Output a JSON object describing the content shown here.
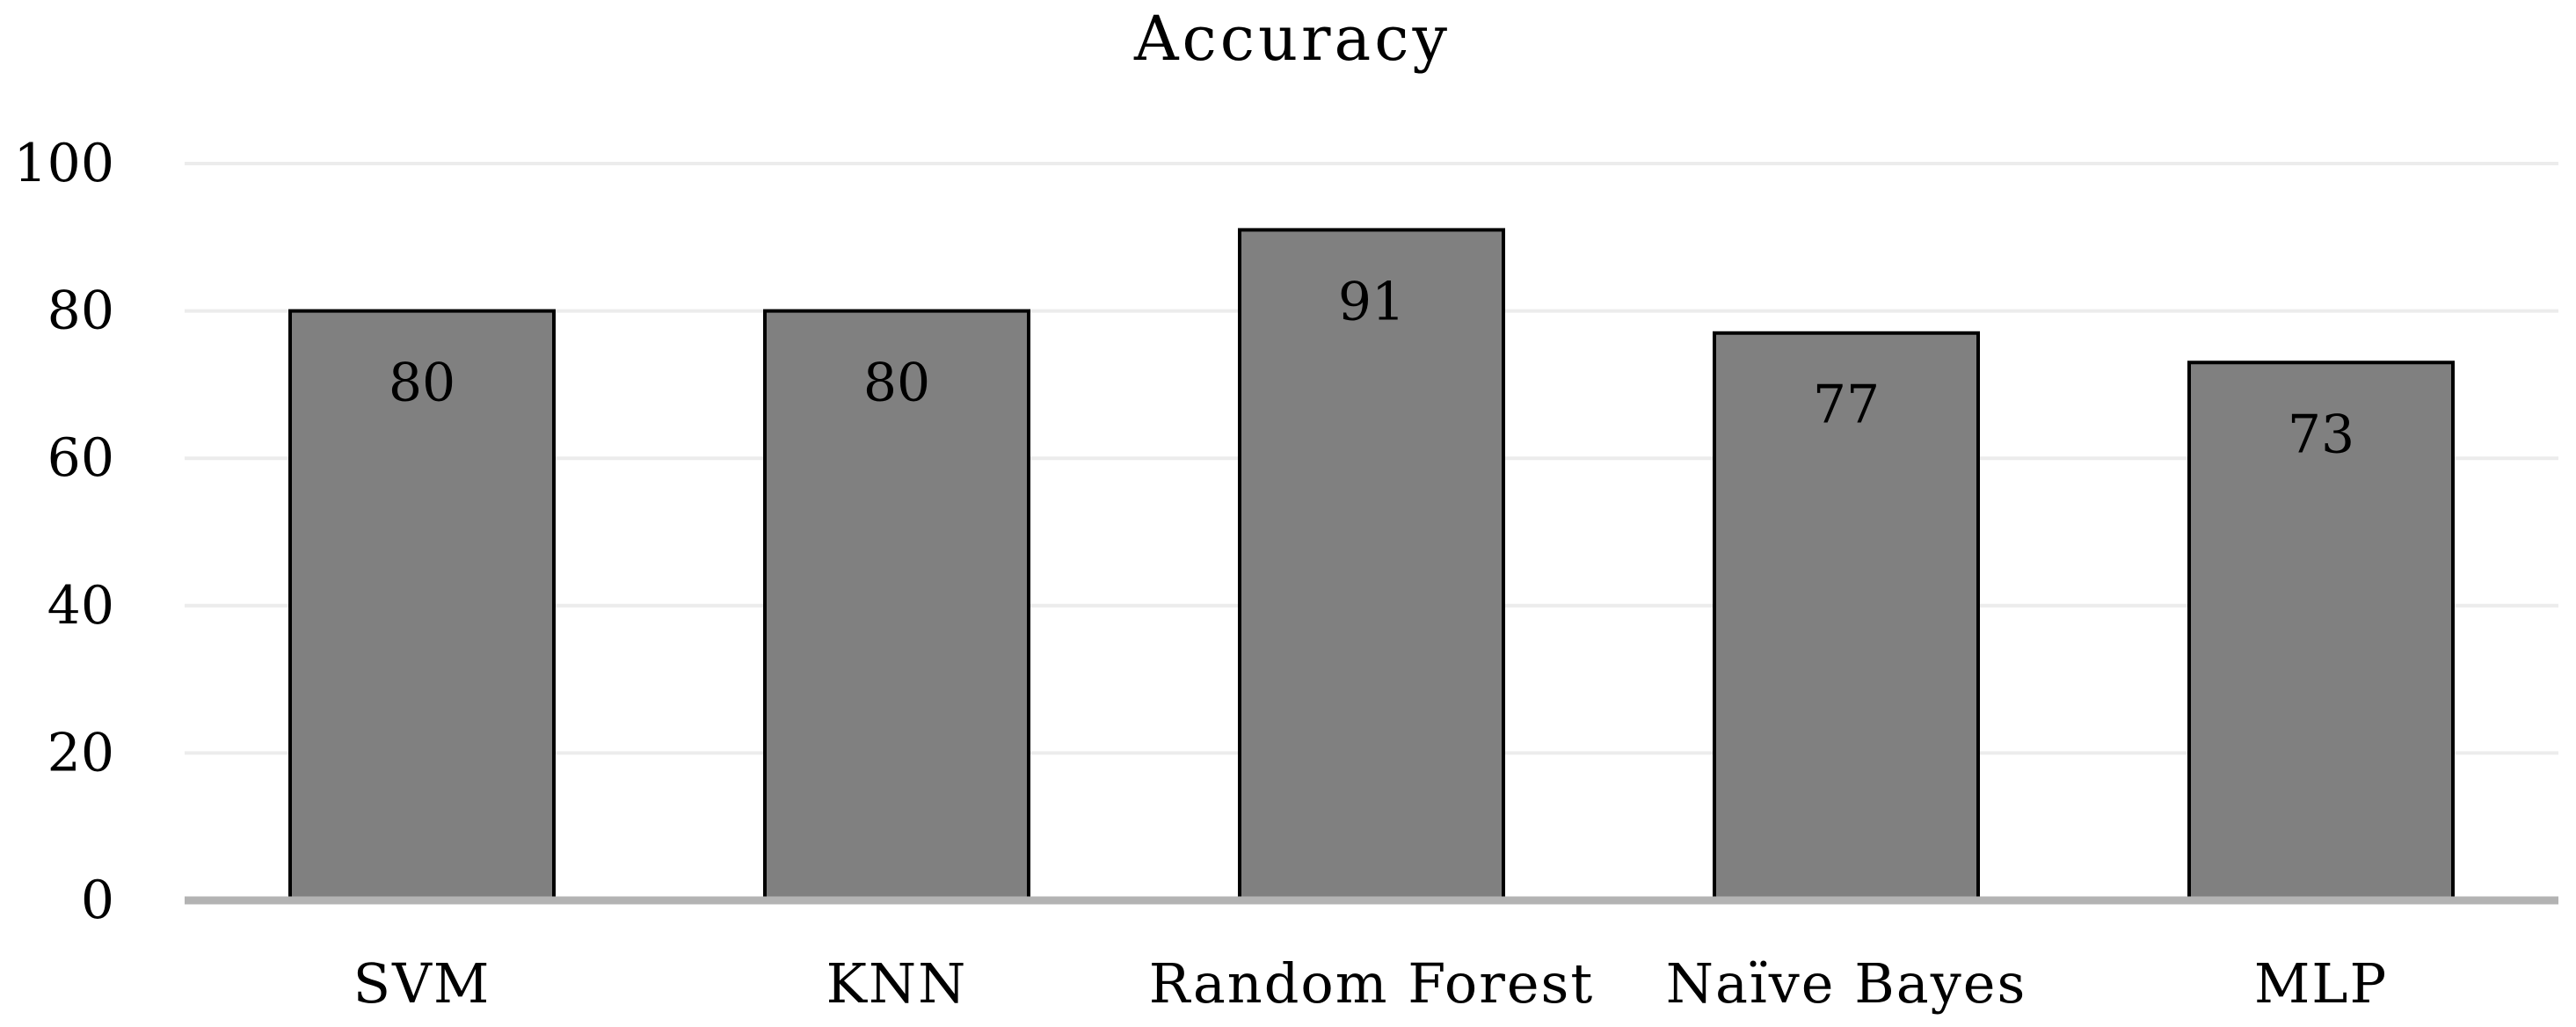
{
  "chart_data": {
    "type": "bar",
    "title": "Accuracy",
    "xlabel": "",
    "ylabel": "",
    "categories": [
      "SVM",
      "KNN",
      "Random Forest",
      "Naïve Bayes",
      "MLP"
    ],
    "values": [
      80,
      80,
      91,
      77,
      73
    ],
    "data_labels": [
      "80",
      "80",
      "91",
      "77",
      "73"
    ],
    "ylim": [
      0,
      100
    ],
    "yticks": [
      0,
      20,
      40,
      60,
      80,
      100
    ],
    "ytick_labels": [
      "0",
      "20",
      "40",
      "60",
      "80",
      "100"
    ],
    "grid": true,
    "legend": "none",
    "colors": {
      "bar_fill": "#808080",
      "bar_edge": "#000000",
      "grid": "#ececec",
      "axis": "#b3b3b3"
    }
  }
}
